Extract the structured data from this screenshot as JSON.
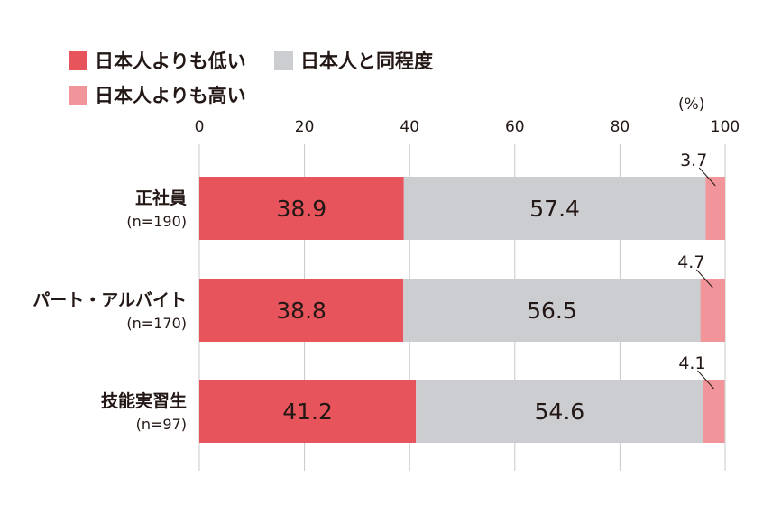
{
  "legend": {
    "items": [
      {
        "label": "日本人よりも低い",
        "color": "#E8545C"
      },
      {
        "label": "日本人と同程度",
        "color": "#CCCDD1"
      },
      {
        "label": "日本人よりも高い",
        "color": "#F1959A"
      }
    ]
  },
  "chart_data": {
    "type": "bar",
    "orientation": "horizontal",
    "stacked": true,
    "unit_label": "(%)",
    "xlim": [
      0,
      100
    ],
    "xticks": [
      "0",
      "20",
      "40",
      "60",
      "80",
      "100"
    ],
    "grid": true,
    "legend_position": "top-left",
    "categories": [
      {
        "name": "正社員",
        "n": "(n=190)"
      },
      {
        "name": "パート・アルバイト",
        "n": "(n=170)"
      },
      {
        "name": "技能実習生",
        "n": "(n=97)"
      }
    ],
    "series": [
      {
        "name": "日本人よりも低い",
        "color": "#E8545C",
        "values": [
          38.9,
          38.8,
          41.2
        ],
        "labels": [
          "38.9",
          "38.8",
          "41.2"
        ]
      },
      {
        "name": "日本人と同程度",
        "color": "#CCCDD1",
        "values": [
          57.4,
          56.5,
          54.6
        ],
        "labels": [
          "57.4",
          "56.5",
          "54.6"
        ]
      },
      {
        "name": "日本人よりも高い",
        "color": "#F1959A",
        "values": [
          3.7,
          4.7,
          4.1
        ],
        "labels": [
          "3.7",
          "4.7",
          "4.1"
        ]
      }
    ]
  }
}
